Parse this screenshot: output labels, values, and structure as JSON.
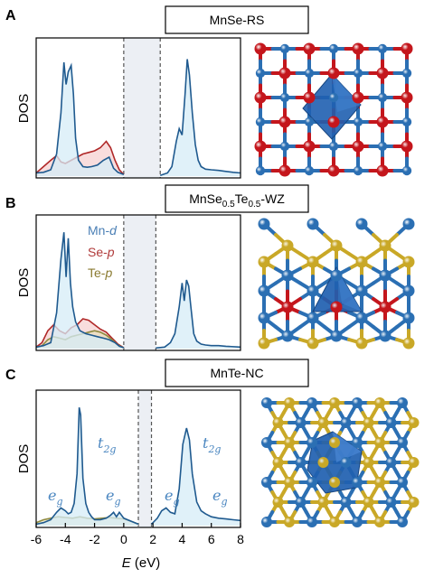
{
  "panels": [
    {
      "letter": "A",
      "title_main": "MnSe-RS",
      "title_sub": "",
      "title_tail": ""
    },
    {
      "letter": "B",
      "title_main": "MnSe",
      "title_sub": "0.5",
      "title_mid": "Te",
      "title_sub2": "0.5",
      "title_tail": "-WZ"
    },
    {
      "letter": "C",
      "title_main": "MnTe-NC",
      "title_sub": "",
      "title_tail": ""
    }
  ],
  "ylabel": "DOS",
  "xaxis": {
    "label_italic": "E",
    "label_rest": " (eV)",
    "ticks": [
      "-6",
      "-4",
      "-2",
      "0",
      "2",
      "4",
      "6",
      "8"
    ]
  },
  "legend": [
    {
      "name": "Mn-",
      "orb": "d",
      "color": "#4a7fb5"
    },
    {
      "name": "Se-",
      "orb": "p",
      "color": "#b03a3a"
    },
    {
      "name": "Te-",
      "orb": "p",
      "color": "#8a7a30"
    }
  ],
  "orbital_labels": {
    "t2g_main": "t",
    "t2g_sub": "2g",
    "eg_main": "e",
    "eg_sub": "g"
  },
  "colors": {
    "mn": "#1f5a8f",
    "mn_fill": "#d6ecf7",
    "se": "#b02828",
    "se_fill": "#f3c7c7",
    "te": "#8f8a40",
    "te_fill": "#e6dfb6",
    "gap": "#eceff4",
    "atom_mn": "#2b6fb3",
    "atom_se": "#c4161c",
    "atom_te": "#c9a827",
    "poly": "#1f5fb0"
  },
  "chart_data": [
    {
      "type": "area",
      "panel": "A",
      "xlim": [
        -6,
        8
      ],
      "gap": [
        0,
        2.5
      ],
      "series": [
        {
          "name": "Mn-d",
          "x": [
            -6,
            -5.5,
            -5,
            -4.6,
            -4.3,
            -4.1,
            -3.95,
            -3.8,
            -3.6,
            -3.45,
            -3.3,
            -3.1,
            -2.8,
            -2.5,
            -2.2,
            -1.8,
            -1.4,
            -1.0,
            -0.7,
            -0.4,
            0
          ],
          "y": [
            0.1,
            0.12,
            0.2,
            0.7,
            2.0,
            3.6,
            2.9,
            3.3,
            3.5,
            2.6,
            1.2,
            0.5,
            0.3,
            0.28,
            0.3,
            0.35,
            0.5,
            0.6,
            0.25,
            0.12,
            0.05
          ]
        },
        {
          "name": "Mn-d",
          "x": [
            2.5,
            3.0,
            3.3,
            3.6,
            3.8,
            4.0,
            4.2,
            4.35,
            4.5,
            4.7,
            4.9,
            5.1,
            5.3,
            5.6,
            6.0,
            6.5,
            7.0,
            7.5,
            8
          ],
          "y": [
            0.02,
            0.1,
            0.3,
            1.1,
            1.5,
            1.3,
            2.6,
            3.7,
            3.2,
            2.0,
            1.0,
            0.5,
            0.3,
            0.22,
            0.2,
            0.18,
            0.15,
            0.12,
            0.1
          ]
        },
        {
          "name": "Se-p",
          "x": [
            -6,
            -5.5,
            -5,
            -4.6,
            -4.3,
            -4.0,
            -3.6,
            -3.2,
            -2.8,
            -2.4,
            -2.0,
            -1.6,
            -1.2,
            -0.9,
            -0.6,
            -0.3,
            0
          ],
          "y": [
            0.1,
            0.3,
            0.5,
            0.65,
            0.45,
            0.4,
            0.5,
            0.6,
            0.7,
            0.75,
            0.8,
            0.9,
            1.1,
            0.9,
            0.5,
            0.2,
            0.05
          ]
        }
      ]
    },
    {
      "type": "area",
      "panel": "B",
      "xlim": [
        -6,
        8
      ],
      "gap": [
        0,
        2.2
      ],
      "series": [
        {
          "name": "Mn-d",
          "x": [
            -6,
            -5.5,
            -5,
            -4.6,
            -4.3,
            -4.1,
            -3.95,
            -3.8,
            -3.65,
            -3.5,
            -3.3,
            -3.0,
            -2.6,
            -2.2,
            -1.8,
            -1.4,
            -1.0,
            -0.6,
            -0.3,
            0
          ],
          "y": [
            0.05,
            0.1,
            0.2,
            1.2,
            3.0,
            3.9,
            2.4,
            3.7,
            2.2,
            1.4,
            0.9,
            0.6,
            0.5,
            0.45,
            0.4,
            0.35,
            0.3,
            0.2,
            0.08,
            0.03
          ]
        },
        {
          "name": "Mn-d",
          "x": [
            2.2,
            2.8,
            3.2,
            3.5,
            3.8,
            4.0,
            4.15,
            4.3,
            4.45,
            4.6,
            4.8,
            5.0,
            5.3,
            5.6,
            6.0,
            6.5,
            7.0,
            8
          ],
          "y": [
            0.02,
            0.05,
            0.2,
            0.5,
            1.4,
            2.2,
            1.6,
            2.3,
            2.1,
            1.4,
            0.5,
            0.25,
            0.15,
            0.12,
            0.1,
            0.1,
            0.08,
            0.05
          ]
        },
        {
          "name": "Se-p",
          "x": [
            -6,
            -5.6,
            -5.2,
            -4.8,
            -4.4,
            -4.0,
            -3.6,
            -3.2,
            -2.8,
            -2.4,
            -2.0,
            -1.6,
            -1.2,
            -0.8,
            -0.4,
            0
          ],
          "y": [
            0.05,
            0.2,
            0.6,
            0.8,
            0.6,
            0.5,
            0.7,
            0.8,
            1.0,
            0.95,
            0.8,
            0.65,
            0.55,
            0.35,
            0.15,
            0.03
          ]
        },
        {
          "name": "Te-p",
          "x": [
            -6,
            -5.6,
            -5.2,
            -4.8,
            -4.4,
            -4.0,
            -3.6,
            -3.2,
            -2.8,
            -2.4,
            -2.0,
            -1.6,
            -1.2,
            -0.8,
            -0.4,
            0
          ],
          "y": [
            0.03,
            0.1,
            0.3,
            0.4,
            0.35,
            0.3,
            0.4,
            0.45,
            0.5,
            0.55,
            0.6,
            0.55,
            0.45,
            0.3,
            0.12,
            0.02
          ]
        }
      ]
    },
    {
      "type": "area",
      "panel": "C",
      "xlim": [
        -6,
        8
      ],
      "gap": [
        1.0,
        1.9
      ],
      "series": [
        {
          "name": "Mn-d",
          "x": [
            -6,
            -5.5,
            -5,
            -4.6,
            -4.3,
            -4.0,
            -3.8,
            -3.6,
            -3.4,
            -3.2,
            -3.05,
            -2.95,
            -2.8,
            -2.6,
            -2.4,
            -2.2,
            -2.0,
            -1.6,
            -1.2,
            -0.9,
            -0.7,
            -0.5,
            -0.3,
            0,
            0.5,
            1.0
          ],
          "y": [
            0.1,
            0.2,
            0.4,
            0.9,
            1.2,
            1.0,
            0.8,
            0.9,
            1.5,
            3.5,
            8.0,
            7.5,
            3.2,
            1.5,
            0.9,
            0.6,
            0.4,
            0.4,
            0.5,
            0.7,
            0.9,
            0.6,
            0.9,
            0.5,
            0.3,
            0.1
          ]
        },
        {
          "name": "Mn-d",
          "x": [
            1.9,
            2.3,
            2.6,
            2.9,
            3.2,
            3.5,
            3.8,
            4.05,
            4.3,
            4.5,
            4.7,
            5.0,
            5.3,
            5.6,
            6.0,
            6.5,
            7.0,
            7.5,
            8
          ],
          "y": [
            0.1,
            0.5,
            1.0,
            1.2,
            0.9,
            0.8,
            2.5,
            5.5,
            6.6,
            5.8,
            3.5,
            1.6,
            1.0,
            0.8,
            0.6,
            0.5,
            0.45,
            0.4,
            0.35
          ]
        },
        {
          "name": "Te-p",
          "x": [
            -6,
            -5.5,
            -5,
            -4.5,
            -4.0,
            -3.5,
            -3.0,
            -2.5,
            -2.0,
            -1.5,
            -1.0,
            -0.5,
            0,
            0.5,
            1.0
          ],
          "y": [
            0.2,
            0.4,
            0.5,
            0.6,
            0.55,
            0.5,
            0.6,
            0.5,
            0.45,
            0.5,
            0.55,
            0.5,
            0.45,
            0.3,
            0.1
          ]
        }
      ]
    }
  ]
}
